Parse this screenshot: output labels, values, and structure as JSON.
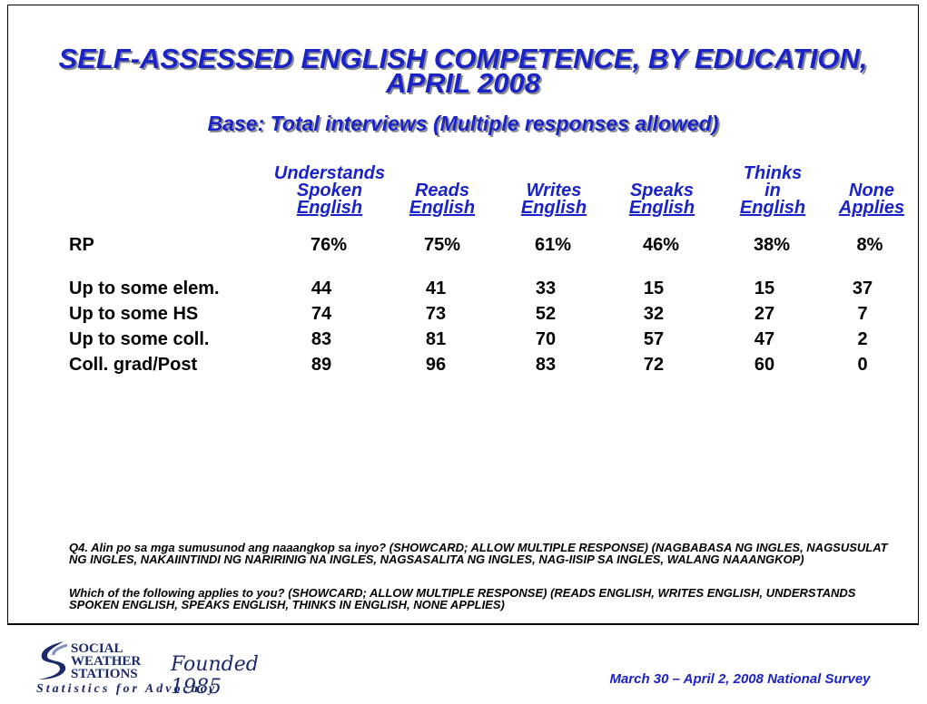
{
  "title_line1": "SELF-ASSESSED ENGLISH COMPETENCE, BY EDUCATION,",
  "title_line2": "APRIL 2008",
  "subtitle": "Base: Total interviews (Multiple responses allowed)",
  "columns": [
    {
      "lines": [
        "Understands",
        "Spoken"
      ],
      "underlined": "English"
    },
    {
      "lines": [
        "Reads"
      ],
      "underlined": "English"
    },
    {
      "lines": [
        "Writes"
      ],
      "underlined": "English"
    },
    {
      "lines": [
        "Speaks"
      ],
      "underlined": "English"
    },
    {
      "lines": [
        "Thinks",
        "in"
      ],
      "underlined": "English"
    },
    {
      "lines": [
        "None"
      ],
      "underlined": "Applies"
    }
  ],
  "rows": [
    {
      "label": "RP",
      "values": [
        "76%",
        "75%",
        "61%",
        "46%",
        "38%",
        "8%"
      ]
    },
    {
      "label": "Up to some elem.",
      "values": [
        "44",
        "41",
        "33",
        "15",
        "15",
        "37"
      ]
    },
    {
      "label": "Up to some HS",
      "values": [
        "74",
        "73",
        "52",
        "32",
        "27",
        "7"
      ]
    },
    {
      "label": "Up to some coll.",
      "values": [
        "83",
        "81",
        "70",
        "57",
        "47",
        "2"
      ]
    },
    {
      "label": "Coll. grad/Post",
      "values": [
        "89",
        "96",
        "83",
        "72",
        "60",
        "0"
      ]
    }
  ],
  "notes": {
    "q4_tagalog": "Q4. Alin po sa mga sumusunod ang naaangkop sa inyo? (SHOWCARD; ALLOW MULTIPLE RESPONSE) (NAGBABASA NG INGLES, NAGSUSULAT NG INGLES, NAKAIINTINDI NG NARIRINIG NA INGLES, NAGSASALITA NG INGLES, NAG-IISIP SA INGLES, WALANG NAAANGKOP)",
    "q4_english": "Which of the following applies to you? (SHOWCARD; ALLOW MULTIPLE RESPONSE) (READS ENGLISH, WRITES ENGLISH, UNDERSTANDS SPOKEN ENGLISH, SPEAKS ENGLISH, THINKS IN ENGLISH, NONE APPLIES)"
  },
  "logo": {
    "line1": "SOCIAL",
    "line2": "WEATHER",
    "line3": "STATIONS",
    "founded": "Founded 1985",
    "tagline": "Statistics for Advocacy",
    "color": "#1b2a6b"
  },
  "survey_note": "March 30 – April 2, 2008 National Survey",
  "colors": {
    "title": "#1a23c8",
    "text": "#000000"
  }
}
